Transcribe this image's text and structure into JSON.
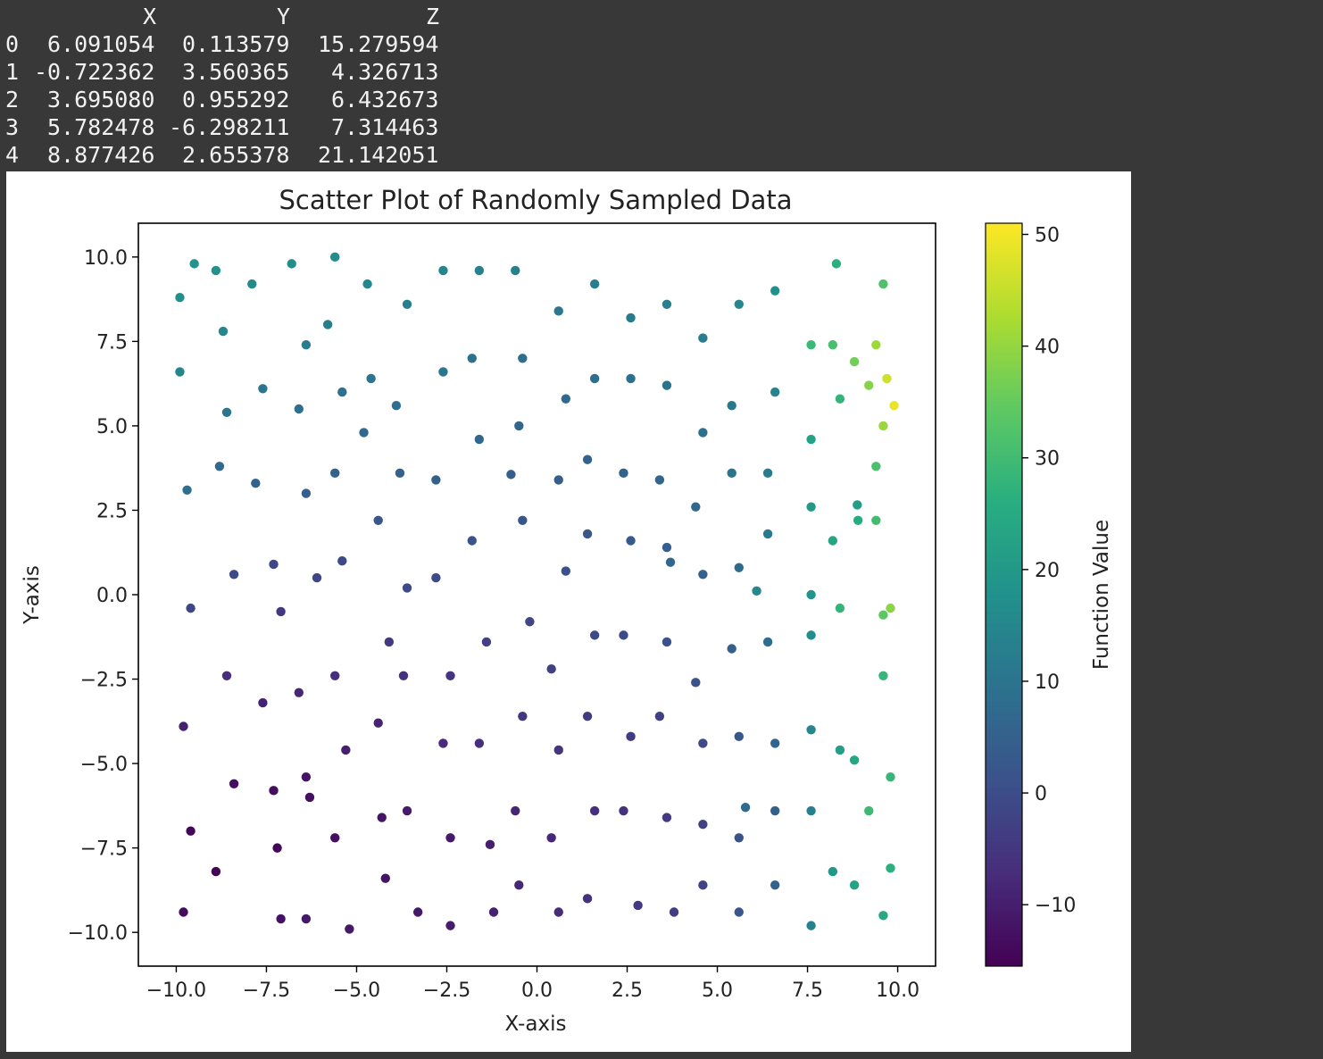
{
  "dataframe": {
    "columns": [
      "X",
      "Y",
      "Z"
    ],
    "rows": [
      {
        "index": "0",
        "X": "6.091054",
        "Y": "0.113579",
        "Z": "15.279594"
      },
      {
        "index": "1",
        "X": "-0.722362",
        "Y": "3.560365",
        "Z": "4.326713"
      },
      {
        "index": "2",
        "X": "3.695080",
        "Y": "0.955292",
        "Z": "6.432673"
      },
      {
        "index": "3",
        "X": "5.782478",
        "Y": "-6.298211",
        "Z": "7.314463"
      },
      {
        "index": "4",
        "X": "8.877426",
        "Y": "2.655378",
        "Z": "21.142051"
      }
    ]
  },
  "chart_data": {
    "type": "scatter",
    "title": "Scatter Plot of Randomly Sampled Data",
    "xlabel": "X-axis",
    "ylabel": "Y-axis",
    "xlim": [
      -11.05,
      11.05
    ],
    "ylim": [
      -11.0,
      11.0
    ],
    "xticks": [
      -10.0,
      -7.5,
      -5.0,
      -2.5,
      0.0,
      2.5,
      5.0,
      7.5,
      10.0
    ],
    "yticks": [
      -10.0,
      -7.5,
      -5.0,
      -2.5,
      0.0,
      2.5,
      5.0,
      7.5,
      10.0
    ],
    "xtick_labels": [
      "−10.0",
      "−7.5",
      "−5.0",
      "−2.5",
      "0.0",
      "2.5",
      "5.0",
      "7.5",
      "10.0"
    ],
    "ytick_labels": [
      "−10.0",
      "−7.5",
      "−5.0",
      "−2.5",
      "0.0",
      "2.5",
      "5.0",
      "7.5",
      "10.0"
    ],
    "grid": false,
    "colormap": "viridis",
    "colorbar": {
      "label": "Function Value",
      "range": [
        -15.5,
        51.0
      ],
      "ticks": [
        -10,
        0,
        10,
        20,
        30,
        40,
        50
      ],
      "tick_labels": [
        "−10",
        "0",
        "10",
        "20",
        "30",
        "40",
        "50"
      ]
    },
    "points": [
      {
        "x": 6.09,
        "y": 0.11,
        "z": 15.28
      },
      {
        "x": -0.72,
        "y": 3.56,
        "z": 4.33
      },
      {
        "x": 3.7,
        "y": 0.96,
        "z": 6.43
      },
      {
        "x": 5.78,
        "y": -6.3,
        "z": 7.31
      },
      {
        "x": 8.88,
        "y": 2.66,
        "z": 21.14
      },
      {
        "x": -9.9,
        "y": 8.8,
        "z": 17.4
      },
      {
        "x": -9.5,
        "y": 9.8,
        "z": 18.6
      },
      {
        "x": -9.9,
        "y": 6.6,
        "z": 14.4
      },
      {
        "x": -9.7,
        "y": 3.1,
        "z": 8.6
      },
      {
        "x": -9.6,
        "y": -0.4,
        "z": -1.6
      },
      {
        "x": -9.8,
        "y": -3.9,
        "z": -9.5
      },
      {
        "x": -9.6,
        "y": -7.0,
        "z": -14.5
      },
      {
        "x": -9.8,
        "y": -9.4,
        "z": -13.6
      },
      {
        "x": -8.9,
        "y": 9.6,
        "z": 18.0
      },
      {
        "x": -8.7,
        "y": 7.8,
        "z": 15.0
      },
      {
        "x": -8.6,
        "y": 5.4,
        "z": 10.6
      },
      {
        "x": -8.8,
        "y": 3.8,
        "z": 7.2
      },
      {
        "x": -8.4,
        "y": 0.6,
        "z": -0.4
      },
      {
        "x": -8.6,
        "y": -2.4,
        "z": -6.8
      },
      {
        "x": -8.4,
        "y": -5.6,
        "z": -13.0
      },
      {
        "x": -8.9,
        "y": -8.2,
        "z": -15.0
      },
      {
        "x": -7.9,
        "y": 9.2,
        "z": 15.8
      },
      {
        "x": -7.6,
        "y": 6.1,
        "z": 10.6
      },
      {
        "x": -7.8,
        "y": 3.3,
        "z": 5.6
      },
      {
        "x": -7.3,
        "y": 0.9,
        "z": -1.4
      },
      {
        "x": -7.1,
        "y": -0.5,
        "z": -4.5
      },
      {
        "x": -7.6,
        "y": -3.2,
        "z": -9.2
      },
      {
        "x": -7.3,
        "y": -5.8,
        "z": -13.2
      },
      {
        "x": -7.2,
        "y": -7.5,
        "z": -14.5
      },
      {
        "x": -7.1,
        "y": -9.6,
        "z": -12.5
      },
      {
        "x": -6.8,
        "y": 9.8,
        "z": 17.0
      },
      {
        "x": -6.4,
        "y": 7.4,
        "z": 12.2
      },
      {
        "x": -6.6,
        "y": 5.5,
        "z": 8.6
      },
      {
        "x": -6.4,
        "y": 3.0,
        "z": 4.3
      },
      {
        "x": -6.1,
        "y": 0.5,
        "z": -1.6
      },
      {
        "x": -6.6,
        "y": -2.9,
        "z": -8.4
      },
      {
        "x": -6.4,
        "y": -5.4,
        "z": -12.1
      },
      {
        "x": -6.3,
        "y": -6.0,
        "z": -12.6
      },
      {
        "x": -6.4,
        "y": -9.6,
        "z": -11.1
      },
      {
        "x": -5.6,
        "y": 10.0,
        "z": 17.0
      },
      {
        "x": -5.8,
        "y": 8.0,
        "z": 13.0
      },
      {
        "x": -5.4,
        "y": 6.0,
        "z": 9.2
      },
      {
        "x": -5.6,
        "y": 3.6,
        "z": 5.6
      },
      {
        "x": -5.4,
        "y": 1.0,
        "z": -0.8
      },
      {
        "x": -5.6,
        "y": -2.4,
        "z": -6.6
      },
      {
        "x": -5.3,
        "y": -4.6,
        "z": -9.6
      },
      {
        "x": -5.6,
        "y": -7.2,
        "z": -12.8
      },
      {
        "x": -5.2,
        "y": -9.9,
        "z": -11.2
      },
      {
        "x": -4.7,
        "y": 9.2,
        "z": 15.2
      },
      {
        "x": -4.6,
        "y": 6.4,
        "z": 10.2
      },
      {
        "x": -4.8,
        "y": 4.8,
        "z": 7.2
      },
      {
        "x": -4.4,
        "y": 2.2,
        "z": 2.4
      },
      {
        "x": -4.1,
        "y": -1.4,
        "z": -4.6
      },
      {
        "x": -4.4,
        "y": -3.8,
        "z": -8.8
      },
      {
        "x": -4.3,
        "y": -6.6,
        "z": -11.9
      },
      {
        "x": -4.2,
        "y": -8.4,
        "z": -12.0
      },
      {
        "x": -3.6,
        "y": 8.6,
        "z": 13.2
      },
      {
        "x": -3.9,
        "y": 5.6,
        "z": 8.4
      },
      {
        "x": -3.8,
        "y": 3.6,
        "z": 5.2
      },
      {
        "x": -3.6,
        "y": 0.2,
        "z": -0.8
      },
      {
        "x": -3.7,
        "y": -2.4,
        "z": -6.1
      },
      {
        "x": -3.6,
        "y": -6.4,
        "z": -11.0
      },
      {
        "x": -3.3,
        "y": -9.4,
        "z": -11.2
      },
      {
        "x": -2.6,
        "y": 9.6,
        "z": 14.6
      },
      {
        "x": -2.6,
        "y": 6.6,
        "z": 10.2
      },
      {
        "x": -2.8,
        "y": 3.4,
        "z": 4.8
      },
      {
        "x": -2.8,
        "y": 0.5,
        "z": -0.4
      },
      {
        "x": -2.4,
        "y": -2.4,
        "z": -5.4
      },
      {
        "x": -2.6,
        "y": -4.4,
        "z": -7.6
      },
      {
        "x": -2.4,
        "y": -7.2,
        "z": -10.8
      },
      {
        "x": -2.4,
        "y": -9.8,
        "z": -10.2
      },
      {
        "x": -1.6,
        "y": 9.6,
        "z": 14.0
      },
      {
        "x": -1.8,
        "y": 7.0,
        "z": 9.4
      },
      {
        "x": -1.6,
        "y": 4.6,
        "z": 6.4
      },
      {
        "x": -1.8,
        "y": 1.6,
        "z": 1.6
      },
      {
        "x": -1.4,
        "y": -1.4,
        "z": -2.8
      },
      {
        "x": -1.6,
        "y": -4.4,
        "z": -6.6
      },
      {
        "x": -1.3,
        "y": -7.4,
        "z": -9.8
      },
      {
        "x": -1.2,
        "y": -9.4,
        "z": -9.4
      },
      {
        "x": -0.6,
        "y": 9.6,
        "z": 13.4
      },
      {
        "x": -0.4,
        "y": 7.0,
        "z": 9.0
      },
      {
        "x": -0.5,
        "y": 5.0,
        "z": 6.2
      },
      {
        "x": -0.4,
        "y": 2.2,
        "z": 2.2
      },
      {
        "x": -0.2,
        "y": -0.8,
        "z": -1.8
      },
      {
        "x": -0.4,
        "y": -3.6,
        "z": -5.2
      },
      {
        "x": -0.6,
        "y": -6.4,
        "z": -8.6
      },
      {
        "x": -0.5,
        "y": -8.6,
        "z": -8.2
      },
      {
        "x": 0.6,
        "y": 8.4,
        "z": 10.8
      },
      {
        "x": 0.8,
        "y": 5.8,
        "z": 7.2
      },
      {
        "x": 0.6,
        "y": 3.4,
        "z": 4.2
      },
      {
        "x": 0.8,
        "y": 0.7,
        "z": 0.9
      },
      {
        "x": 0.4,
        "y": -2.2,
        "z": -2.8
      },
      {
        "x": 0.6,
        "y": -4.6,
        "z": -5.6
      },
      {
        "x": 0.4,
        "y": -7.2,
        "z": -8.2
      },
      {
        "x": 0.6,
        "y": -9.4,
        "z": -7.8
      },
      {
        "x": 1.6,
        "y": 9.2,
        "z": 12.6
      },
      {
        "x": 1.6,
        "y": 6.4,
        "z": 8.4
      },
      {
        "x": 1.4,
        "y": 4.0,
        "z": 5.2
      },
      {
        "x": 1.4,
        "y": 1.8,
        "z": 2.4
      },
      {
        "x": 1.6,
        "y": -1.2,
        "z": -1.0
      },
      {
        "x": 1.4,
        "y": -3.6,
        "z": -4.0
      },
      {
        "x": 1.6,
        "y": -6.4,
        "z": -6.8
      },
      {
        "x": 1.4,
        "y": -9.0,
        "z": -6.2
      },
      {
        "x": 2.6,
        "y": 8.2,
        "z": 11.6
      },
      {
        "x": 2.6,
        "y": 6.4,
        "z": 9.0
      },
      {
        "x": 2.4,
        "y": 3.6,
        "z": 5.4
      },
      {
        "x": 2.6,
        "y": 1.6,
        "z": 3.2
      },
      {
        "x": 2.4,
        "y": -1.2,
        "z": -0.4
      },
      {
        "x": 2.6,
        "y": -4.2,
        "z": -3.8
      },
      {
        "x": 2.4,
        "y": -6.4,
        "z": -6.0
      },
      {
        "x": 2.8,
        "y": -9.2,
        "z": -4.8
      },
      {
        "x": 3.6,
        "y": 8.6,
        "z": 12.8
      },
      {
        "x": 3.6,
        "y": 6.2,
        "z": 9.6
      },
      {
        "x": 3.4,
        "y": 3.4,
        "z": 6.2
      },
      {
        "x": 3.6,
        "y": 1.4,
        "z": 4.4
      },
      {
        "x": 3.6,
        "y": -1.4,
        "z": 1.0
      },
      {
        "x": 3.4,
        "y": -3.6,
        "z": -2.6
      },
      {
        "x": 3.6,
        "y": -6.6,
        "z": -4.6
      },
      {
        "x": 3.8,
        "y": -9.4,
        "z": -3.6
      },
      {
        "x": 4.6,
        "y": 7.6,
        "z": 12.2
      },
      {
        "x": 4.6,
        "y": 4.8,
        "z": 8.8
      },
      {
        "x": 4.4,
        "y": 2.6,
        "z": 6.6
      },
      {
        "x": 4.6,
        "y": 0.6,
        "z": 4.8
      },
      {
        "x": 4.4,
        "y": -2.6,
        "z": 1.2
      },
      {
        "x": 4.6,
        "y": -4.4,
        "z": -0.8
      },
      {
        "x": 4.6,
        "y": -6.8,
        "z": -2.4
      },
      {
        "x": 4.6,
        "y": -8.6,
        "z": -2.0
      },
      {
        "x": 5.6,
        "y": 8.6,
        "z": 15.0
      },
      {
        "x": 5.4,
        "y": 5.6,
        "z": 11.4
      },
      {
        "x": 5.4,
        "y": 3.6,
        "z": 9.6
      },
      {
        "x": 5.6,
        "y": 0.8,
        "z": 7.6
      },
      {
        "x": 5.4,
        "y": -1.6,
        "z": 4.6
      },
      {
        "x": 5.6,
        "y": -4.2,
        "z": 2.4
      },
      {
        "x": 5.6,
        "y": -7.2,
        "z": 1.2
      },
      {
        "x": 5.6,
        "y": -9.4,
        "z": 1.8
      },
      {
        "x": 6.6,
        "y": 9.0,
        "z": 17.6
      },
      {
        "x": 6.6,
        "y": 6.0,
        "z": 14.2
      },
      {
        "x": 6.4,
        "y": 3.6,
        "z": 12.2
      },
      {
        "x": 6.4,
        "y": 1.8,
        "z": 11.2
      },
      {
        "x": 6.4,
        "y": -1.4,
        "z": 8.2
      },
      {
        "x": 6.6,
        "y": -4.4,
        "z": 6.0
      },
      {
        "x": 6.6,
        "y": -6.4,
        "z": 4.8
      },
      {
        "x": 6.6,
        "y": -8.6,
        "z": 5.2
      },
      {
        "x": 7.6,
        "y": 7.4,
        "z": 29.0
      },
      {
        "x": 7.6,
        "y": 4.6,
        "z": 22.6
      },
      {
        "x": 7.6,
        "y": 2.6,
        "z": 19.8
      },
      {
        "x": 7.6,
        "y": 0.0,
        "z": 18.4
      },
      {
        "x": 7.6,
        "y": -1.2,
        "z": 16.4
      },
      {
        "x": 7.6,
        "y": -4.0,
        "z": 15.0
      },
      {
        "x": 7.6,
        "y": -6.4,
        "z": 13.2
      },
      {
        "x": 7.6,
        "y": -9.8,
        "z": 13.4
      },
      {
        "x": 8.3,
        "y": 9.8,
        "z": 26.4
      },
      {
        "x": 8.2,
        "y": 7.4,
        "z": 31.0
      },
      {
        "x": 8.4,
        "y": 5.8,
        "z": 28.0
      },
      {
        "x": 8.2,
        "y": 1.6,
        "z": 23.6
      },
      {
        "x": 8.4,
        "y": -0.4,
        "z": 28.0
      },
      {
        "x": 8.4,
        "y": -4.6,
        "z": 21.4
      },
      {
        "x": 8.2,
        "y": -8.2,
        "z": 19.8
      },
      {
        "x": 8.8,
        "y": 6.9,
        "z": 36.4
      },
      {
        "x": 8.9,
        "y": 2.2,
        "z": 25.4
      },
      {
        "x": 8.8,
        "y": -4.9,
        "z": 23.8
      },
      {
        "x": 8.8,
        "y": -8.6,
        "z": 22.6
      },
      {
        "x": 9.2,
        "y": 6.2,
        "z": 38.6
      },
      {
        "x": 9.4,
        "y": 7.4,
        "z": 41.0
      },
      {
        "x": 9.6,
        "y": 5.0,
        "z": 40.6
      },
      {
        "x": 9.7,
        "y": 6.4,
        "z": 46.0
      },
      {
        "x": 9.9,
        "y": 5.6,
        "z": 48.8
      },
      {
        "x": 9.4,
        "y": 3.8,
        "z": 31.4
      },
      {
        "x": 9.6,
        "y": 9.2,
        "z": 32.0
      },
      {
        "x": 9.4,
        "y": 2.2,
        "z": 30.2
      },
      {
        "x": 9.6,
        "y": -0.6,
        "z": 34.0
      },
      {
        "x": 9.8,
        "y": -0.4,
        "z": 39.2
      },
      {
        "x": 9.6,
        "y": -2.4,
        "z": 28.4
      },
      {
        "x": 9.8,
        "y": -5.4,
        "z": 28.6
      },
      {
        "x": 9.8,
        "y": -8.1,
        "z": 26.8
      },
      {
        "x": 9.6,
        "y": -9.5,
        "z": 24.4
      },
      {
        "x": 9.2,
        "y": -6.4,
        "z": 29.4
      }
    ]
  }
}
